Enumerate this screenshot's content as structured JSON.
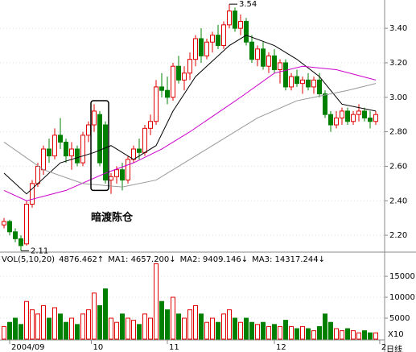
{
  "chart_data": {
    "type": "candlestick",
    "candles": [
      [
        2.26,
        2.3,
        2.24,
        2.28
      ],
      [
        2.28,
        2.29,
        2.2,
        2.22
      ],
      [
        2.22,
        2.24,
        2.16,
        2.18
      ],
      [
        2.18,
        2.2,
        2.11,
        2.14
      ],
      [
        2.15,
        2.4,
        2.14,
        2.38
      ],
      [
        2.38,
        2.52,
        2.36,
        2.5
      ],
      [
        2.5,
        2.62,
        2.48,
        2.6
      ],
      [
        2.58,
        2.72,
        2.55,
        2.7
      ],
      [
        2.7,
        2.76,
        2.62,
        2.66
      ],
      [
        2.66,
        2.82,
        2.64,
        2.78
      ],
      [
        2.78,
        2.88,
        2.7,
        2.74
      ],
      [
        2.74,
        2.76,
        2.62,
        2.66
      ],
      [
        2.66,
        2.74,
        2.58,
        2.7
      ],
      [
        2.7,
        2.72,
        2.6,
        2.62
      ],
      [
        2.62,
        2.8,
        2.6,
        2.78
      ],
      [
        2.78,
        2.86,
        2.74,
        2.84
      ],
      [
        2.84,
        2.96,
        2.8,
        2.92
      ],
      [
        2.9,
        2.92,
        2.6,
        2.62
      ],
      [
        2.84,
        2.86,
        2.5,
        2.52
      ],
      [
        2.52,
        2.56,
        2.44,
        2.54
      ],
      [
        2.54,
        2.6,
        2.5,
        2.58
      ],
      [
        2.58,
        2.62,
        2.46,
        2.52
      ],
      [
        2.52,
        2.66,
        2.5,
        2.64
      ],
      [
        2.64,
        2.72,
        2.62,
        2.7
      ],
      [
        2.7,
        2.76,
        2.64,
        2.68
      ],
      [
        2.68,
        2.84,
        2.66,
        2.82
      ],
      [
        2.82,
        2.9,
        2.78,
        2.86
      ],
      [
        2.86,
        3.1,
        2.84,
        3.06
      ],
      [
        3.06,
        3.14,
        3.0,
        3.04
      ],
      [
        3.04,
        3.12,
        2.96,
        3.0
      ],
      [
        3.0,
        3.2,
        2.98,
        3.18
      ],
      [
        3.18,
        3.24,
        3.08,
        3.1
      ],
      [
        3.1,
        3.18,
        3.04,
        3.14
      ],
      [
        3.14,
        3.26,
        3.1,
        3.22
      ],
      [
        3.22,
        3.36,
        3.18,
        3.34
      ],
      [
        3.34,
        3.4,
        3.2,
        3.24
      ],
      [
        3.24,
        3.34,
        3.22,
        3.32
      ],
      [
        3.32,
        3.38,
        3.26,
        3.36
      ],
      [
        3.36,
        3.42,
        3.28,
        3.3
      ],
      [
        3.3,
        3.44,
        3.28,
        3.42
      ],
      [
        3.42,
        3.54,
        3.4,
        3.5
      ],
      [
        3.5,
        3.52,
        3.38,
        3.4
      ],
      [
        3.4,
        3.48,
        3.36,
        3.44
      ],
      [
        3.44,
        3.46,
        3.3,
        3.32
      ],
      [
        3.32,
        3.36,
        3.2,
        3.22
      ],
      [
        3.22,
        3.3,
        3.18,
        3.28
      ],
      [
        3.28,
        3.32,
        3.16,
        3.18
      ],
      [
        3.18,
        3.26,
        3.14,
        3.24
      ],
      [
        3.24,
        3.28,
        3.14,
        3.16
      ],
      [
        3.16,
        3.22,
        3.08,
        3.2
      ],
      [
        3.2,
        3.22,
        3.04,
        3.06
      ],
      [
        3.06,
        3.14,
        3.04,
        3.12
      ],
      [
        3.12,
        3.16,
        3.06,
        3.08
      ],
      [
        3.08,
        3.12,
        3.02,
        3.1
      ],
      [
        3.1,
        3.14,
        3.04,
        3.06
      ],
      [
        3.06,
        3.12,
        3.02,
        3.1
      ],
      [
        3.1,
        3.14,
        3.0,
        3.02
      ],
      [
        3.02,
        3.04,
        2.88,
        2.9
      ],
      [
        2.9,
        2.92,
        2.8,
        2.84
      ],
      [
        2.84,
        2.92,
        2.82,
        2.88
      ],
      [
        2.88,
        2.94,
        2.84,
        2.92
      ],
      [
        2.92,
        2.94,
        2.84,
        2.86
      ],
      [
        2.86,
        2.92,
        2.84,
        2.9
      ],
      [
        2.9,
        2.96,
        2.86,
        2.92
      ],
      [
        2.92,
        2.94,
        2.86,
        2.88
      ],
      [
        2.88,
        2.92,
        2.82,
        2.86
      ],
      [
        2.86,
        2.92,
        2.84,
        2.9
      ]
    ],
    "volume": [
      3000,
      4000,
      5000,
      3500,
      9000,
      7000,
      6000,
      8000,
      5000,
      7500,
      6000,
      4000,
      5000,
      3500,
      6000,
      7000,
      11000,
      8000,
      12000,
      5000,
      4000,
      6000,
      5000,
      4500,
      3500,
      6000,
      5000,
      18000,
      9000,
      7000,
      10000,
      6000,
      5000,
      7000,
      8000,
      6000,
      4000,
      5000,
      4000,
      6000,
      7000,
      5000,
      4000,
      5000,
      4000,
      3500,
      4000,
      3000,
      3500,
      3000,
      4500,
      3000,
      2500,
      3000,
      2500,
      2000,
      3000,
      6000,
      4000,
      2500,
      2000,
      2500,
      2000,
      1500,
      2000,
      1500,
      1500
    ],
    "up_color": "#e00000",
    "down_color": "#008000",
    "ma_lines": [
      {
        "color": "#000000",
        "x": [
          0,
          4,
          10,
          16,
          19,
          23,
          27,
          30,
          34,
          40,
          43,
          48,
          52,
          56,
          60,
          66
        ],
        "values": [
          2.56,
          2.44,
          2.62,
          2.68,
          2.72,
          2.64,
          2.72,
          2.92,
          3.12,
          3.3,
          3.36,
          3.3,
          3.22,
          3.12,
          2.96,
          2.92
        ]
      },
      {
        "color": "#cc00cc",
        "x": [
          0,
          4,
          11,
          18,
          23,
          28,
          33,
          42,
          48,
          53,
          59,
          66
        ],
        "values": [
          2.46,
          2.4,
          2.46,
          2.56,
          2.62,
          2.7,
          2.8,
          3.0,
          3.14,
          3.18,
          3.16,
          3.1
        ]
      },
      {
        "color": "#999999",
        "x": [
          0,
          7,
          14,
          21,
          27,
          36,
          45,
          52,
          61,
          66
        ],
        "values": [
          2.74,
          2.58,
          2.5,
          2.48,
          2.52,
          2.7,
          2.88,
          2.98,
          3.04,
          3.08
        ]
      }
    ],
    "ylim": [
      2.107,
      3.564
    ],
    "yticks": [
      {
        "value": 2.2,
        "label": "2.20"
      },
      {
        "value": 2.4,
        "label": "2.40"
      },
      {
        "value": 2.6,
        "label": "2.60"
      },
      {
        "value": 2.8,
        "label": "2.80"
      },
      {
        "value": 3.0,
        "label": "3.00"
      },
      {
        "value": 3.2,
        "label": "3.20"
      },
      {
        "value": 3.4,
        "label": "3.40"
      }
    ],
    "y2lim": [
      0,
      20400
    ],
    "y2ticks": [
      5000,
      10000,
      15000
    ],
    "y2_unit": "X10",
    "x_labels": [
      {
        "value": 1,
        "label": "2004/09"
      },
      {
        "value": 15.5,
        "label": "10"
      },
      {
        "value": 29,
        "label": "11"
      },
      {
        "value": 48,
        "label": "12"
      },
      {
        "value": 66.7,
        "label": "2"
      }
    ],
    "annotation": "暗渡陈仓",
    "vol_legend": [
      {
        "text": "VOL(5,10,20)",
        "color": "#000000"
      },
      {
        "text": "4876.462↑",
        "color": "#000000"
      },
      {
        "text": "MA1: 4657.200↓",
        "color": "#cc00cc"
      },
      {
        "text": "MA2: 9409.146↓",
        "color": "#666666"
      },
      {
        "text": "MA3: 14317.244↓",
        "color": "#000000"
      }
    ],
    "period_label": "日线",
    "grid": true
  }
}
